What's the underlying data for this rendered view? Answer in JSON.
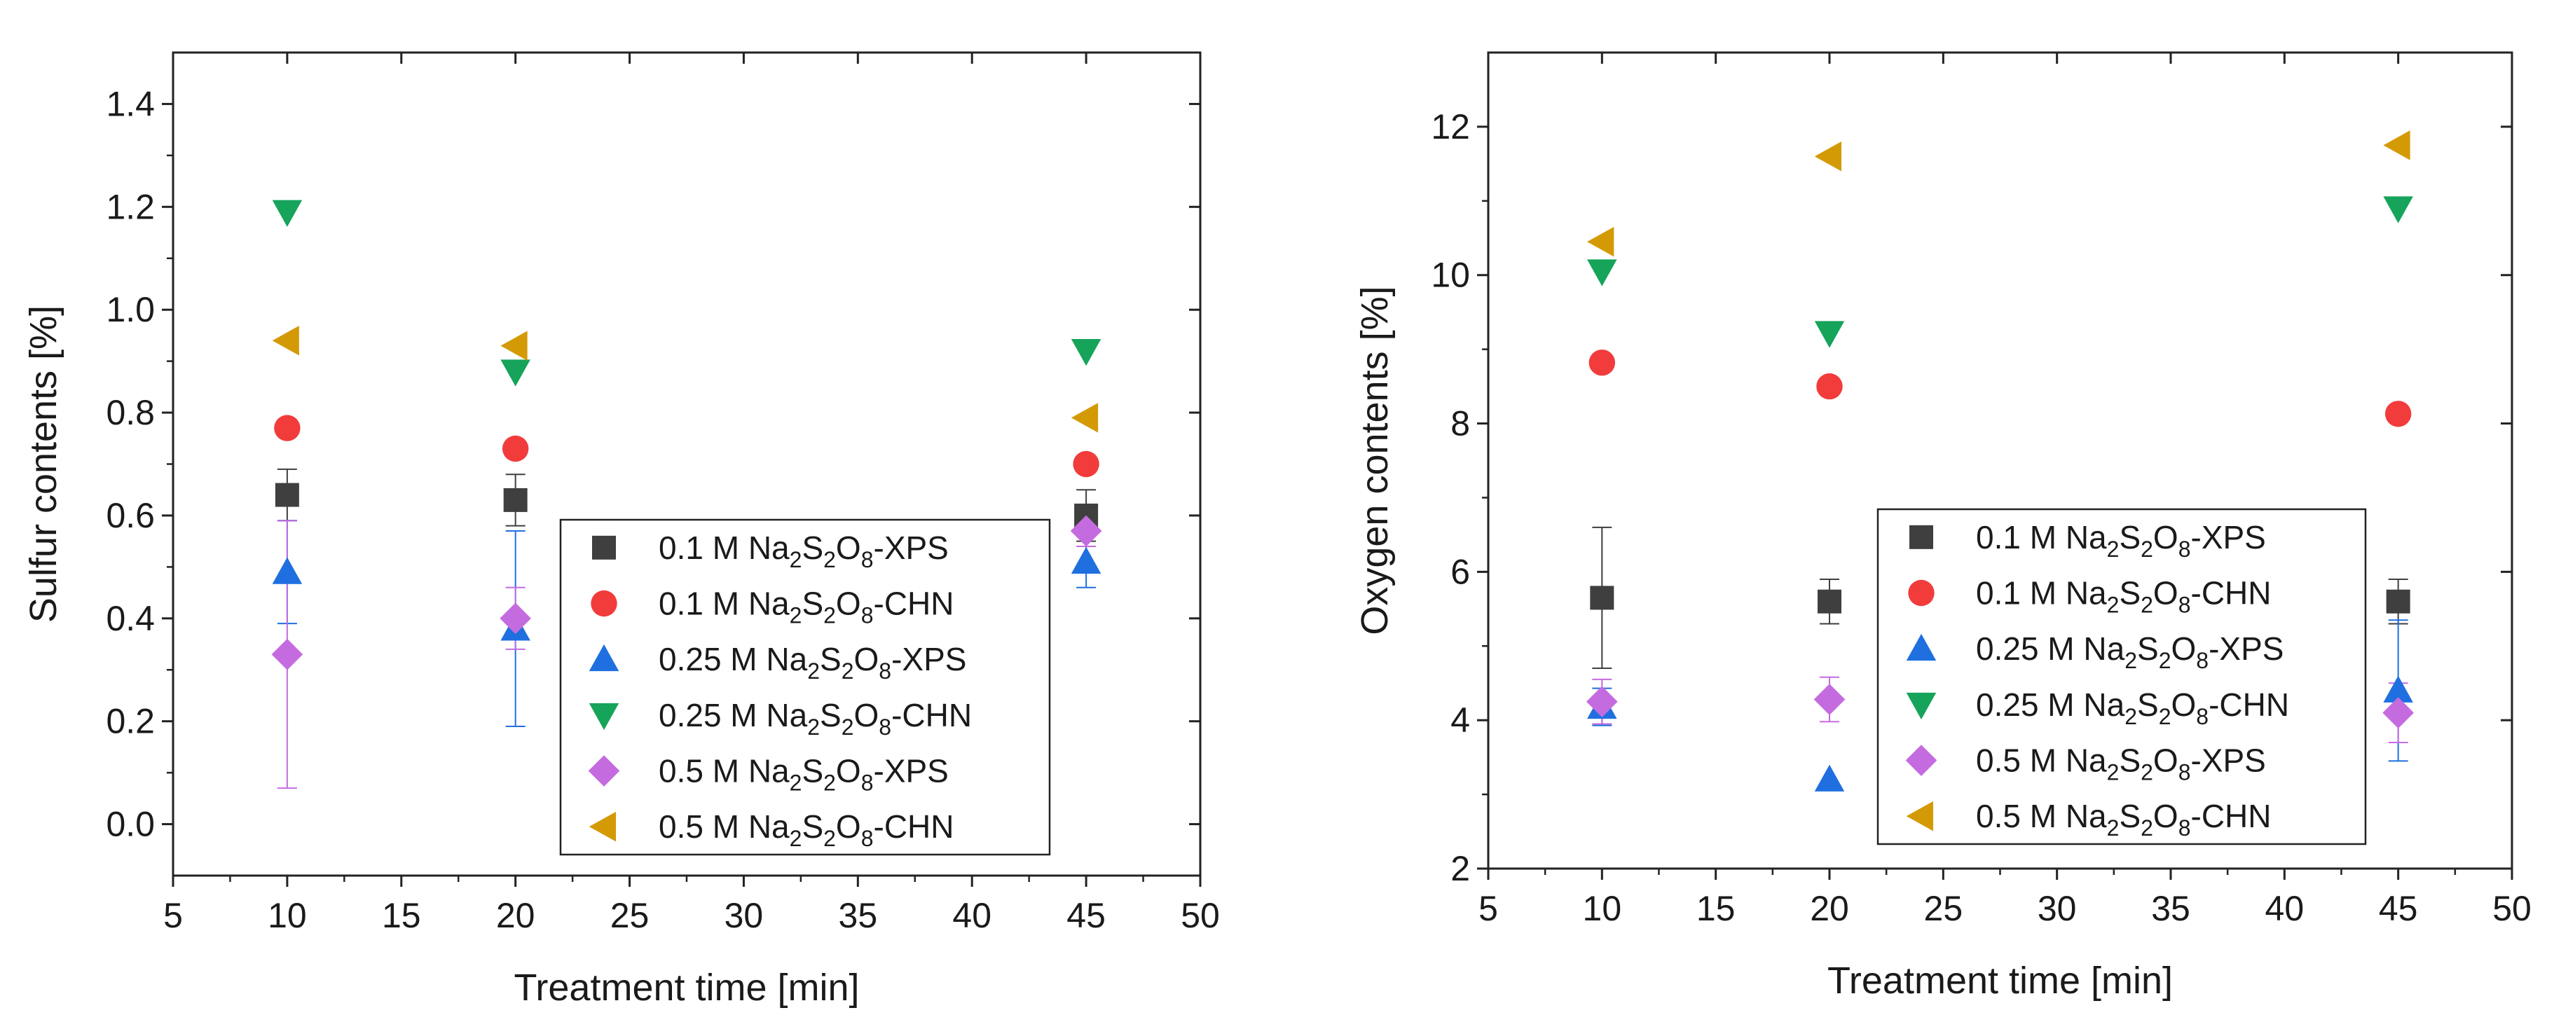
{
  "chart_data": [
    {
      "type": "scatter",
      "title": "",
      "xlabel": "Treatment time [min]",
      "ylabel": "Sulfur contents [%]",
      "xlim": [
        5,
        50
      ],
      "ylim": [
        -0.1,
        1.5
      ],
      "xticks": [
        5,
        10,
        15,
        20,
        25,
        30,
        35,
        40,
        45,
        50
      ],
      "yticks": [
        0.0,
        0.2,
        0.4,
        0.6,
        0.8,
        1.0,
        1.2,
        1.4
      ],
      "ytick_decimals": 1,
      "legend_position": "bottom-right",
      "series": [
        {
          "name_parts": [
            "0.1 M Na",
            "2",
            "S",
            "2",
            "O",
            "8",
            "-XPS"
          ],
          "marker": "square",
          "color": "#3f3f3f",
          "x": [
            10,
            20,
            45
          ],
          "y": [
            0.64,
            0.63,
            0.6
          ],
          "err": [
            0.05,
            0.05,
            0.05
          ]
        },
        {
          "name_parts": [
            "0.1 M Na",
            "2",
            "S",
            "2",
            "O",
            "8",
            "-CHN"
          ],
          "marker": "circle",
          "color": "#f23b3b",
          "x": [
            10,
            20,
            45
          ],
          "y": [
            0.77,
            0.73,
            0.7
          ],
          "err": null
        },
        {
          "name_parts": [
            "0.25 M Na",
            "2",
            "S",
            "2",
            "O",
            "8",
            "-XPS"
          ],
          "marker": "triangle-up",
          "color": "#1f6fe0",
          "x": [
            10,
            20,
            45
          ],
          "y": [
            0.49,
            0.38,
            0.51
          ],
          "err": [
            0.1,
            0.19,
            0.05
          ]
        },
        {
          "name_parts": [
            "0.25 M Na",
            "2",
            "S",
            "2",
            "O",
            "8",
            "-CHN"
          ],
          "marker": "triangle-down",
          "color": "#16a35a",
          "x": [
            10,
            20,
            45
          ],
          "y": [
            1.19,
            0.88,
            0.92
          ],
          "err": null
        },
        {
          "name_parts": [
            "0.5 M Na",
            "2",
            "S",
            "2",
            "O",
            "8",
            "-XPS"
          ],
          "marker": "diamond",
          "color": "#c56be0",
          "x": [
            10,
            20,
            45
          ],
          "y": [
            0.33,
            0.4,
            0.57
          ],
          "err": [
            0.26,
            0.06,
            0.03
          ]
        },
        {
          "name_parts": [
            "0.5 M Na",
            "2",
            "S",
            "2",
            "O",
            "8",
            "-CHN"
          ],
          "marker": "triangle-left",
          "color": "#d49a06",
          "x": [
            10,
            20,
            45
          ],
          "y": [
            0.94,
            0.93,
            0.79
          ],
          "err": null
        }
      ]
    },
    {
      "type": "scatter",
      "title": "",
      "xlabel": "Treatment time [min]",
      "ylabel": "Oxygen contents [%]",
      "xlim": [
        5,
        50
      ],
      "ylim": [
        2,
        13
      ],
      "xticks": [
        5,
        10,
        15,
        20,
        25,
        30,
        35,
        40,
        45,
        50
      ],
      "yticks": [
        2,
        4,
        6,
        8,
        10,
        12
      ],
      "ytick_decimals": 0,
      "legend_position": "bottom-right",
      "series": [
        {
          "name_parts": [
            "0.1 M Na",
            "2",
            "S",
            "2",
            "O",
            "8",
            "-XPS"
          ],
          "marker": "square",
          "color": "#3f3f3f",
          "x": [
            10,
            20,
            45
          ],
          "y": [
            5.65,
            5.6,
            5.6
          ],
          "err": [
            0.95,
            0.3,
            0.3
          ]
        },
        {
          "name_parts": [
            "0.1 M Na",
            "2",
            "S",
            "2",
            "O",
            "8",
            "-CHN"
          ],
          "marker": "circle",
          "color": "#f23b3b",
          "x": [
            10,
            20,
            45
          ],
          "y": [
            8.82,
            8.5,
            8.13
          ],
          "err": null
        },
        {
          "name_parts": [
            "0.25 M Na",
            "2",
            "S",
            "2",
            "O",
            "8",
            "-XPS"
          ],
          "marker": "triangle-up",
          "color": "#1f6fe0",
          "x": [
            10,
            20,
            45
          ],
          "y": [
            4.18,
            3.2,
            4.4
          ],
          "err": [
            0.25,
            0.0,
            0.95
          ]
        },
        {
          "name_parts": [
            "0.25 M Na",
            "2",
            "S",
            "2",
            "O",
            "8",
            "-CHN"
          ],
          "marker": "triangle-down",
          "color": "#16a35a",
          "x": [
            10,
            20,
            45
          ],
          "y": [
            10.05,
            9.22,
            10.9
          ],
          "err": null
        },
        {
          "name_parts": [
            "0.5 M Na",
            "2",
            "S",
            "2",
            "O",
            "8",
            "-XPS"
          ],
          "marker": "diamond",
          "color": "#c56be0",
          "x": [
            10,
            20,
            45
          ],
          "y": [
            4.25,
            4.28,
            4.1
          ],
          "err": [
            0.3,
            0.3,
            0.4
          ]
        },
        {
          "name_parts": [
            "0.5 M Na",
            "2",
            "S",
            "2",
            "O",
            "8",
            "-CHN"
          ],
          "marker": "triangle-left",
          "color": "#d49a06",
          "x": [
            10,
            20,
            45
          ],
          "y": [
            10.45,
            11.6,
            11.75
          ],
          "err": null
        }
      ]
    }
  ]
}
